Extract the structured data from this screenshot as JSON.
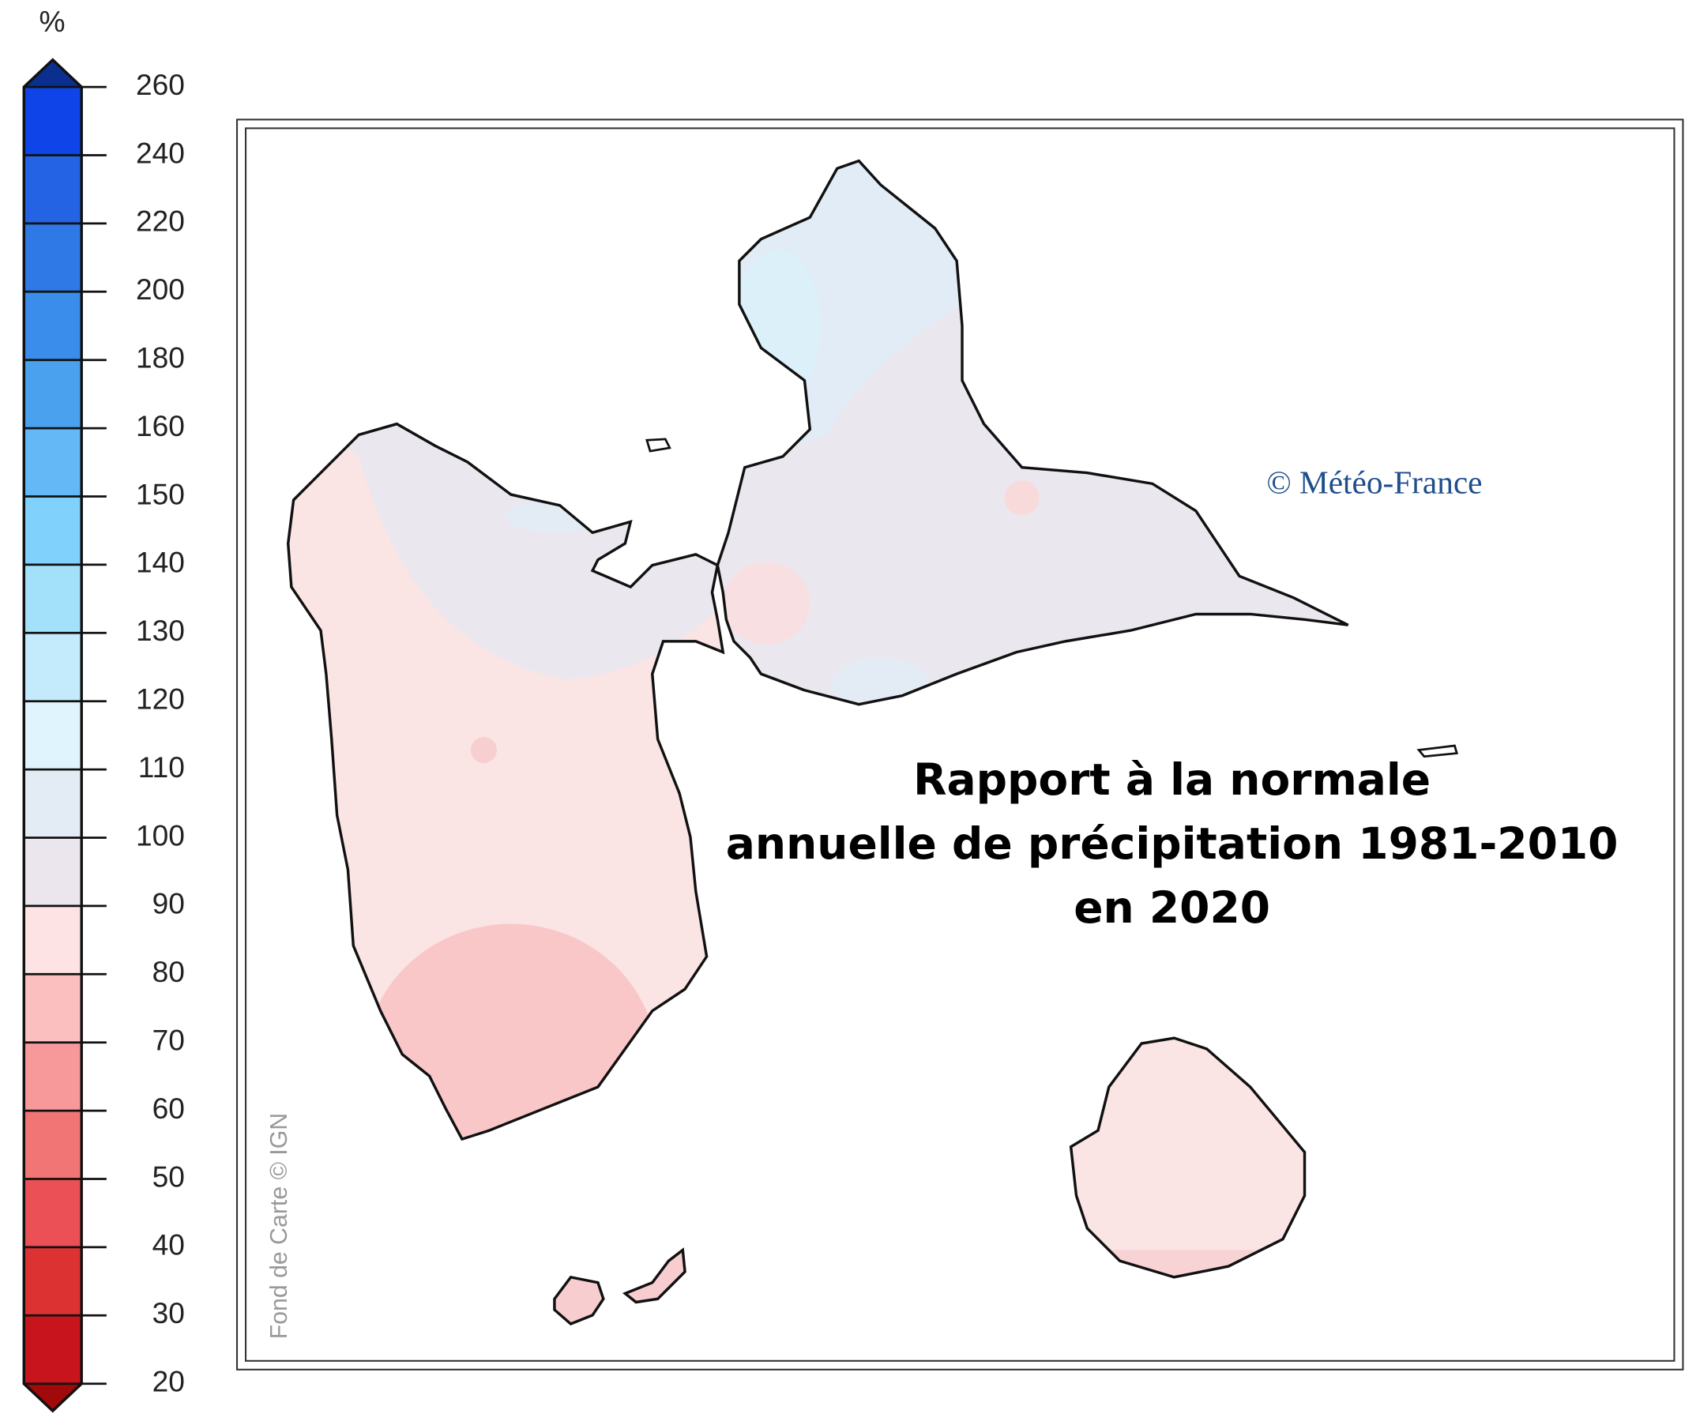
{
  "legend": {
    "unit": "%",
    "ticks": [
      20,
      30,
      40,
      50,
      60,
      70,
      80,
      90,
      100,
      110,
      120,
      130,
      140,
      150,
      160,
      180,
      200,
      220,
      240,
      260
    ],
    "colors": [
      "#c8141c",
      "#dc3232",
      "#ea5055",
      "#f27575",
      "#f7999b",
      "#fbbfc0",
      "#fde3e3",
      "#ebe6ee",
      "#e3ecf5",
      "#dff4fc",
      "#c3ebfb",
      "#a3e0fa",
      "#80d1fb",
      "#63b8f5",
      "#4aa2ef",
      "#3a8dea",
      "#2e79e6",
      "#2363e4",
      "#0f45e8"
    ],
    "over_color": "#0b2f8f",
    "under_color": "#a00a0a"
  },
  "title": {
    "lines": [
      "Rapport à la normale",
      "annuelle de précipitation 1981-2010",
      "en 2020"
    ]
  },
  "credits": {
    "copyright": "© Météo-France",
    "basemap": "Fond de Carte © IGN"
  }
}
